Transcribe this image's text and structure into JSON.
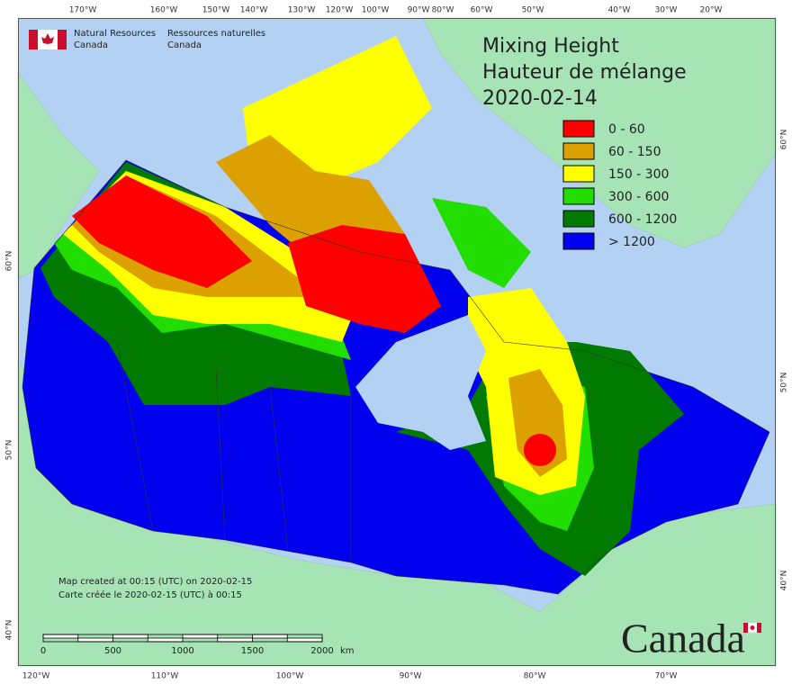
{
  "header": {
    "org_en": [
      "Natural Resources",
      "Canada"
    ],
    "org_fr": [
      "Ressources naturelles",
      "Canada"
    ]
  },
  "title": [
    "Mixing Height",
    "Hauteur de mélange",
    "2020-02-14"
  ],
  "legend": [
    {
      "label": "0 - 60",
      "color": "#ff0000"
    },
    {
      "label": "60 - 150",
      "color": "#dca000"
    },
    {
      "label": "150 - 300",
      "color": "#ffff00"
    },
    {
      "label": "300 - 600",
      "color": "#22dd00"
    },
    {
      "label": "600 - 1200",
      "color": "#007a00"
    },
    {
      "label": "> 1200",
      "color": "#0000ee"
    }
  ],
  "graticule": {
    "top": [
      "170°W",
      "160°W",
      "150°W",
      "140°W",
      "130°W",
      "120°W",
      "100°W",
      "90°W",
      "80°W",
      "60°W",
      "50°W",
      "40°W",
      "30°W",
      "20°W"
    ],
    "bottom": [
      "120°W",
      "110°W",
      "100°W",
      "90°W",
      "80°W",
      "70°W"
    ],
    "left": [
      "60°N",
      "50°N",
      "40°N"
    ],
    "right": [
      "60°N",
      "50°N",
      "40°N"
    ]
  },
  "credits": [
    "Map created at 00:15 (UTC) on 2020-02-15",
    "Carte créée le 2020-02-15 (UTC) à 00:15"
  ],
  "scale": {
    "ticks": [
      0,
      500,
      1000,
      1500,
      2000
    ],
    "unit": "km"
  },
  "wordmark": "Canada"
}
